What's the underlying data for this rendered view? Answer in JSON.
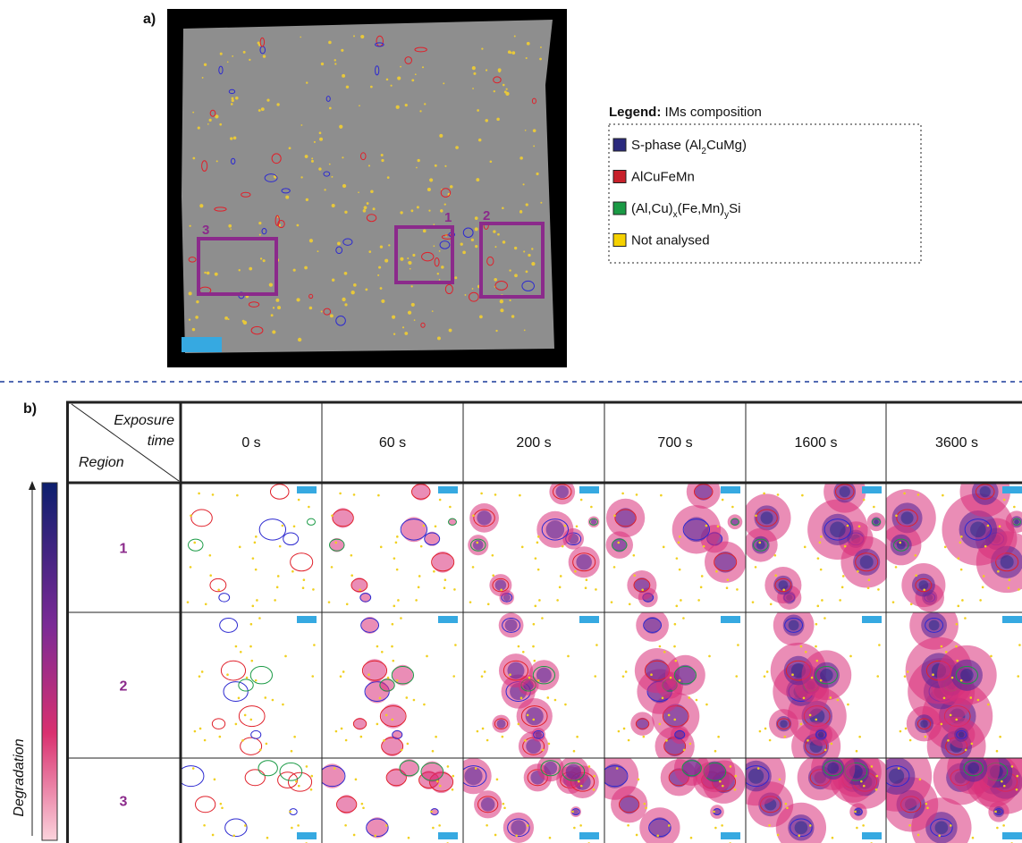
{
  "panel_a": {
    "label": "a)",
    "regions": [
      {
        "label": "3"
      },
      {
        "label": "1"
      },
      {
        "label": "2"
      }
    ]
  },
  "legend": {
    "title": "Legend:",
    "subtitle": "IMs composition",
    "items": [
      {
        "parts": [
          "S-phase (Al",
          "2",
          "CuMg)"
        ]
      },
      {
        "parts": [
          "AlCuFeMn"
        ]
      },
      {
        "parts": [
          "(Al,Cu)",
          "x",
          "(Fe,Mn)",
          "y",
          "Si"
        ]
      },
      {
        "parts": [
          "Not analysed"
        ]
      }
    ]
  },
  "panel_b": {
    "label": "b)",
    "column_title": [
      "Exposure",
      "time"
    ],
    "row_title": "Region",
    "columns": [
      "0 s",
      "60 s",
      "200 s",
      "700 s",
      "1600 s",
      "3600 s"
    ],
    "rows": [
      "1",
      "2",
      "3"
    ],
    "colorbar_label": "Degradation"
  }
}
